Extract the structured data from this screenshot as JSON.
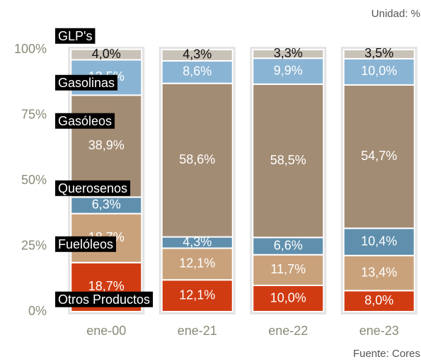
{
  "chart_data": {
    "type": "stacked_bar",
    "unit_note": "Unidad: %",
    "source": "Fuente: Cores",
    "categories": [
      "ene-00",
      "ene-21",
      "ene-22",
      "ene-23"
    ],
    "ylim": [
      0,
      100
    ],
    "yticks": [
      {
        "value": 0,
        "label": "0%"
      },
      {
        "value": 25,
        "label": "25%"
      },
      {
        "value": 50,
        "label": "50%"
      },
      {
        "value": 75,
        "label": "75%"
      },
      {
        "value": 100,
        "label": "100%"
      }
    ],
    "series": [
      {
        "name": "Otros Productos",
        "color": "#d13b12",
        "label_color": "#ffffff",
        "values": [
          18.7,
          12.1,
          10.0,
          8.0
        ],
        "value_labels": [
          "18,7%",
          "12,1%",
          "10,0%",
          "8,0%"
        ]
      },
      {
        "name": "Fuelóleos",
        "color": "#c9a27c",
        "label_color": "#ffffff",
        "values": [
          18.7,
          12.1,
          11.7,
          13.4
        ],
        "value_labels": [
          "18,7%",
          "12,1%",
          "11,7%",
          "13,4%"
        ]
      },
      {
        "name": "Querosenos",
        "color": "#5f8fad",
        "label_color": "#ffffff",
        "values": [
          6.3,
          4.3,
          6.6,
          10.4
        ],
        "value_labels": [
          "6,3%",
          "4,3%",
          "6,6%",
          "10,4%"
        ]
      },
      {
        "name": "Gasóleos",
        "color": "#a38c74",
        "label_color": "#ffffff",
        "values": [
          38.9,
          58.6,
          58.5,
          54.7
        ],
        "value_labels": [
          "38,9%",
          "58,6%",
          "58,5%",
          "54,7%"
        ]
      },
      {
        "name": "Gasolinas",
        "color": "#8ab4d3",
        "label_color": "#ffffff",
        "values": [
          13.5,
          8.6,
          9.9,
          10.0
        ],
        "value_labels": [
          "13,5%",
          "8,6%",
          "9,9%",
          "10,0%"
        ]
      },
      {
        "name": "GLP's",
        "color": "#c9c2b8",
        "label_color": "#111111",
        "values": [
          4.0,
          4.3,
          3.3,
          3.5
        ],
        "value_labels": [
          "4,0%",
          "4,3%",
          "3,3%",
          "3,5%"
        ]
      }
    ]
  }
}
